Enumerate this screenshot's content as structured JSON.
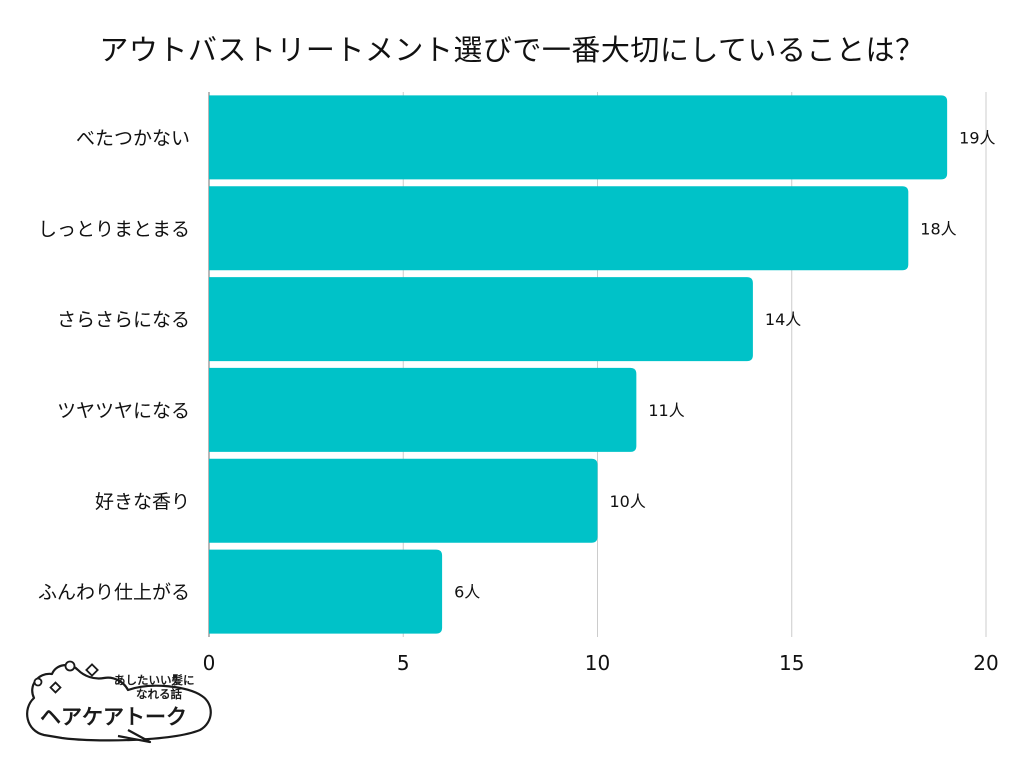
{
  "chart_data": {
    "type": "bar",
    "orientation": "horizontal",
    "title": "アウトバストリートメント選びで一番大切にしていることは？",
    "categories": [
      "べたつかない",
      "しっとりまとまる",
      "さらさらになる",
      "ツヤツヤになる",
      "好きな香り",
      "ふんわり仕上がる"
    ],
    "values": [
      19,
      18,
      14,
      11,
      10,
      6
    ],
    "data_labels": [
      "19人",
      "18人",
      "14人",
      "11人",
      "10人",
      "6人"
    ],
    "xlim": [
      0,
      20
    ],
    "xticks": [
      0,
      5,
      10,
      15,
      20
    ],
    "xtick_labels": [
      "0",
      "5",
      "10",
      "15",
      "20"
    ],
    "xlabel": "",
    "ylabel": "",
    "grid": true,
    "bar_color": "#00C2C8",
    "grid_color": "#CCCCCC"
  },
  "logo": {
    "tagline_line1": "あしたいい髪に",
    "tagline_line2": "なれる話",
    "brand": "ヘアケアトーク"
  }
}
